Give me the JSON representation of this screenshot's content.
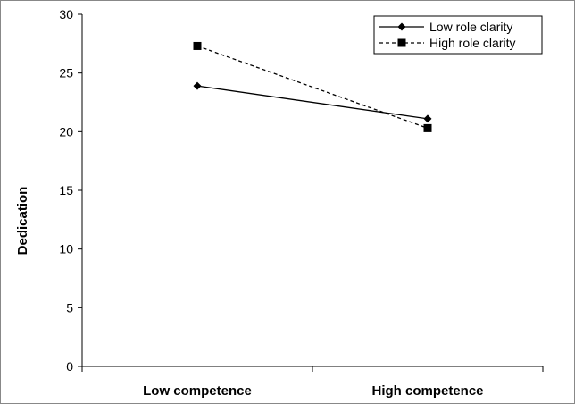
{
  "chart_data": {
    "type": "line",
    "categories": [
      "Low competence",
      "High competence"
    ],
    "ylabel": "Dedication",
    "xlabel": "",
    "ylim": [
      0,
      30
    ],
    "yticks": [
      0,
      5,
      10,
      15,
      20,
      25,
      30
    ],
    "grid": false,
    "legend_position": "top-right",
    "series": [
      {
        "name": "Low role clarity",
        "values": [
          23.9,
          21.1
        ],
        "line_style": "solid",
        "marker": "diamond",
        "color": "#000000"
      },
      {
        "name": "High role clarity",
        "values": [
          27.3,
          20.3
        ],
        "line_style": "dashed",
        "marker": "square",
        "color": "#000000"
      }
    ]
  }
}
